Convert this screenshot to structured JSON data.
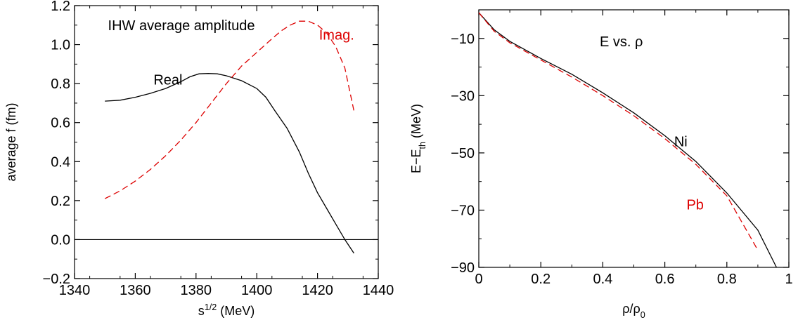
{
  "chart_data": [
    {
      "type": "line",
      "title": "IHW average amplitude",
      "xlabel": {
        "base": "s",
        "sup": "1/2",
        "rest": " (MeV)"
      },
      "ylabel": "average f  (fm)",
      "xlim": [
        1340,
        1440
      ],
      "ylim": [
        -0.2,
        1.2
      ],
      "xticks": [
        1340,
        1360,
        1380,
        1400,
        1420,
        1440
      ],
      "yticks": [
        -0.2,
        0.0,
        0.2,
        0.4,
        0.6,
        0.8,
        1.0,
        1.2
      ],
      "ytick_labels": [
        "−0.2",
        "0.0",
        "0.2",
        "0.4",
        "0.6",
        "0.8",
        "1.0",
        "1.2"
      ],
      "zero_line": true,
      "grid": false,
      "series": [
        {
          "name": "Real",
          "color": "#000000",
          "dash": "solid",
          "x": [
            1350,
            1355,
            1360,
            1365,
            1370,
            1375,
            1378,
            1381,
            1384,
            1387,
            1390,
            1395,
            1400,
            1403,
            1406,
            1410,
            1414,
            1417,
            1420,
            1423,
            1426,
            1429,
            1432
          ],
          "y": [
            0.71,
            0.715,
            0.73,
            0.75,
            0.775,
            0.81,
            0.835,
            0.85,
            0.852,
            0.85,
            0.84,
            0.815,
            0.775,
            0.73,
            0.66,
            0.57,
            0.45,
            0.34,
            0.24,
            0.16,
            0.08,
            0.0,
            -0.07
          ]
        },
        {
          "name": "Imag.",
          "color": "#dd0000",
          "dash": "dashed",
          "x": [
            1350,
            1355,
            1360,
            1365,
            1370,
            1375,
            1380,
            1385,
            1390,
            1395,
            1400,
            1405,
            1408,
            1411,
            1414,
            1417,
            1420,
            1423,
            1426,
            1429,
            1432
          ],
          "y": [
            0.21,
            0.25,
            0.3,
            0.36,
            0.43,
            0.51,
            0.6,
            0.7,
            0.8,
            0.89,
            0.96,
            1.03,
            1.07,
            1.1,
            1.12,
            1.12,
            1.1,
            1.06,
            0.99,
            0.88,
            0.66
          ]
        }
      ],
      "annotations": [
        {
          "text": "IHW average amplitude",
          "x": 1351,
          "y": 1.1
        },
        {
          "text": "Real",
          "x": 1366,
          "y": 0.82
        },
        {
          "text": "Imag.",
          "x": 1420.5,
          "y": 1.05,
          "color": "#dd0000"
        }
      ]
    },
    {
      "type": "line",
      "title": "E vs. ρ",
      "xlabel": {
        "base": "ρ/ρ",
        "sub": "0"
      },
      "ylabel": {
        "base": "E−E",
        "sub": "th",
        "rest": " (MeV)"
      },
      "xlim": [
        0,
        1
      ],
      "ylim": [
        -90,
        0
      ],
      "xticks": [
        0,
        0.2,
        0.4,
        0.6,
        0.8,
        1
      ],
      "xtick_labels": [
        "0",
        "0.2",
        "0.4",
        "0.6",
        "0.8",
        "1"
      ],
      "yticks": [
        -10,
        -30,
        -50,
        -70,
        -90
      ],
      "ytick_labels": [
        "−10",
        "−30",
        "−50",
        "−70",
        "−90"
      ],
      "grid": false,
      "series": [
        {
          "name": "Ni",
          "color": "#000000",
          "dash": "solid",
          "x": [
            0,
            0.05,
            0.1,
            0.2,
            0.3,
            0.4,
            0.5,
            0.6,
            0.7,
            0.8,
            0.9,
            0.96
          ],
          "y": [
            -1,
            -7,
            -11,
            -17,
            -22.5,
            -29,
            -36,
            -44,
            -53,
            -64,
            -77,
            -90
          ]
        },
        {
          "name": "Pb",
          "color": "#dd0000",
          "dash": "dashed",
          "x": [
            0,
            0.05,
            0.1,
            0.2,
            0.3,
            0.4,
            0.5,
            0.6,
            0.7,
            0.8,
            0.9
          ],
          "y": [
            -1,
            -7.5,
            -11.5,
            -17.5,
            -23.5,
            -30,
            -37,
            -45,
            -54,
            -65,
            -84
          ]
        }
      ],
      "annotations": [
        {
          "text": "E vs. ρ",
          "x": 0.39,
          "y": -11
        },
        {
          "text": "Ni",
          "x": 0.63,
          "y": -46
        },
        {
          "text": "Pb",
          "x": 0.67,
          "y": -68,
          "color": "#dd0000"
        }
      ]
    }
  ]
}
